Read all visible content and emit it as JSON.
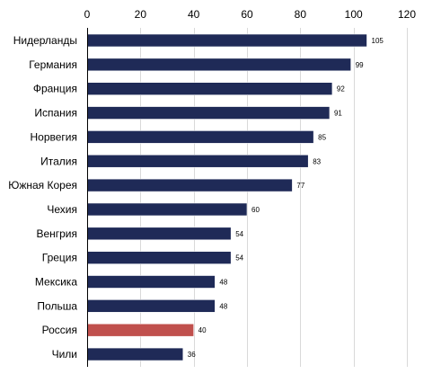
{
  "chart_data": {
    "type": "bar",
    "orientation": "horizontal",
    "categories": [
      "Нидерланды",
      "Германия",
      "Франция",
      "Испания",
      "Норвегия",
      "Италия",
      "Южная Корея",
      "Чехия",
      "Венгрия",
      "Греция",
      "Мексика",
      "Польша",
      "Россия",
      "Чили"
    ],
    "values": [
      105,
      99,
      92,
      91,
      85,
      83,
      77,
      60,
      54,
      54,
      48,
      48,
      40,
      36
    ],
    "data_labels": [
      "105",
      "99",
      "92",
      "91",
      "85",
      "83",
      "77",
      "60",
      "54",
      "54",
      "48",
      "48",
      "40",
      "36"
    ],
    "xlim": [
      0,
      120
    ],
    "x_ticks": [
      "0",
      "20",
      "40",
      "60",
      "80",
      "100",
      "120"
    ],
    "x_axis_position": "top",
    "grid": "vertical",
    "legend": "none",
    "title": "",
    "xlabel": "",
    "ylabel": "",
    "colors": {
      "default_bar": "#1f2a57",
      "highlight_bar": "#c0504d",
      "grid": "#d9d9d9",
      "axis": "#000000"
    },
    "highlight_category": "Россия"
  }
}
